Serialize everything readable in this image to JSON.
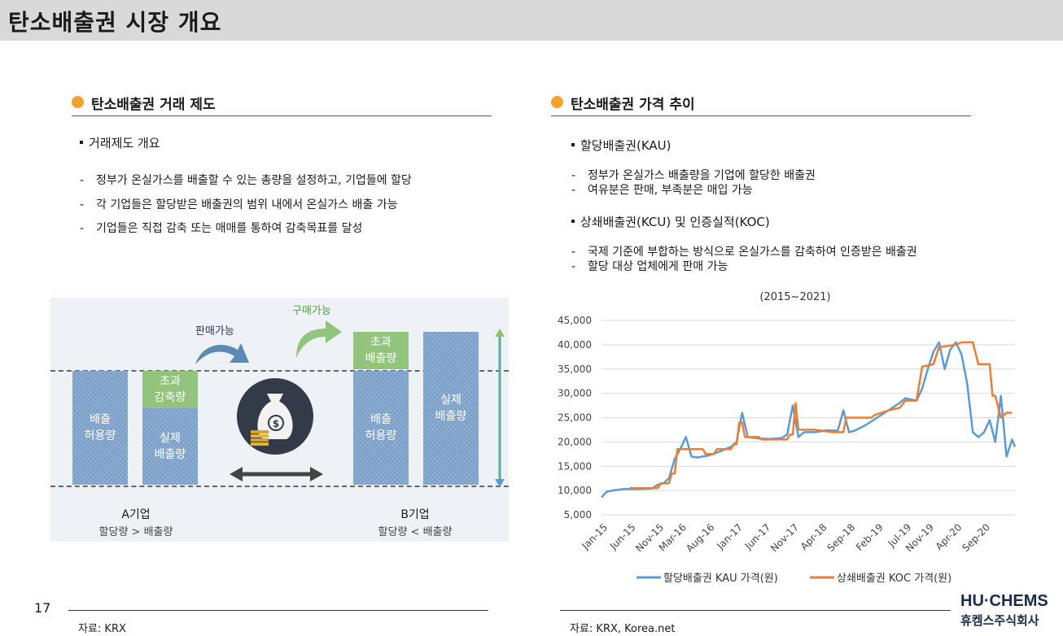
{
  "page": {
    "title": "탄소배출권 시장 개요",
    "page_number": "17",
    "logo_top": "HU·CHEMS",
    "logo_bottom": "휴켐스주식회사"
  },
  "left": {
    "heading": "탄소배출권 거래 제도",
    "bullet": "거래제도 개요",
    "dash_items": [
      "정부가 온실가스를 배출할 수 있는 총량을 설정하고, 기업들에 할당",
      "각 기업들은 할당받은 배출권의 범위 내에서 온실가스 배출 가능",
      "기업들은 직접 감축 또는 매매를 통하여 감축목표를 달성"
    ],
    "diagram": {
      "sell_label": "판매가능",
      "buy_label": "구매가능",
      "a_allow": "배출\n허용량",
      "a_excess": "초과\n감축량",
      "a_actual": "실제\n배출량",
      "b_excess": "초과\n배출량",
      "b_allow": "배출\n허용량",
      "b_actual": "실제\n배출량",
      "a_name": "A기업",
      "a_sub": "할당량 > 배출량",
      "b_name": "B기업",
      "b_sub": "할당량 < 배출량",
      "colors": {
        "bar": "#7ba0c8",
        "green": "#93c47d",
        "bg": "#eef1f5"
      }
    },
    "source": "자료: KRX"
  },
  "right": {
    "heading": "탄소배출권 가격 추이",
    "bullet1": "할당배출권(KAU)",
    "dash1": [
      "정부가 온실가스 배출량을 기업에 할당한 배출권",
      "여유분은 판매, 부족분은 매입 가능"
    ],
    "bullet2": "상쇄배출권(KCU) 및 인증실적(KOC)",
    "dash2": [
      "국제 기준에 부합하는 방식으로 온실가스를 감축하여 인증받은 배출권",
      "할당 대상 업체에게 판매 가능"
    ],
    "source": "자료: KRX, Korea.net"
  },
  "chart_data": {
    "type": "line",
    "title": "(2015~2021)",
    "ylim": [
      5000,
      45000
    ],
    "yticks": [
      "5,000",
      "10,000",
      "15,000",
      "20,000",
      "25,000",
      "30,000",
      "35,000",
      "40,000",
      "45,000"
    ],
    "xticks": [
      "Jan-15",
      "Jun-15",
      "Nov-15",
      "Mar-16",
      "Aug-16",
      "Jan-17",
      "Jun-17",
      "Nov-17",
      "Apr-18",
      "Sep-18",
      "Feb-19",
      "Jul-19",
      "Nov-19",
      "Apr-20",
      "Sep-20"
    ],
    "grid": true,
    "legend_position": "bottom",
    "series": [
      {
        "name": "할당배출권 KAU 가격(원)",
        "color": "#5b9bd5",
        "points": [
          [
            "2015-01",
            8600
          ],
          [
            "2015-02",
            9800
          ],
          [
            "2015-03",
            10000
          ],
          [
            "2015-05",
            10300
          ],
          [
            "2015-08",
            10300
          ],
          [
            "2015-10",
            10400
          ],
          [
            "2015-11",
            11200
          ],
          [
            "2015-12",
            11500
          ],
          [
            "2016-01",
            12500
          ],
          [
            "2016-02",
            16500
          ],
          [
            "2016-03",
            18500
          ],
          [
            "2016-04",
            21000
          ],
          [
            "2016-05",
            17000
          ],
          [
            "2016-06",
            16800
          ],
          [
            "2016-08",
            17200
          ],
          [
            "2016-10",
            18000
          ],
          [
            "2016-12",
            19000
          ],
          [
            "2017-01",
            20000
          ],
          [
            "2017-02",
            26000
          ],
          [
            "2017-03",
            21000
          ],
          [
            "2017-05",
            20700
          ],
          [
            "2017-07",
            20600
          ],
          [
            "2017-09",
            20800
          ],
          [
            "2017-10",
            21500
          ],
          [
            "2017-11",
            27500
          ],
          [
            "2017-12",
            21000
          ],
          [
            "2018-01",
            22000
          ],
          [
            "2018-03",
            22000
          ],
          [
            "2018-05",
            22400
          ],
          [
            "2018-07",
            22300
          ],
          [
            "2018-08",
            26500
          ],
          [
            "2018-09",
            22000
          ],
          [
            "2018-10",
            22300
          ],
          [
            "2018-12",
            23500
          ],
          [
            "2019-02",
            25000
          ],
          [
            "2019-04",
            26500
          ],
          [
            "2019-06",
            28000
          ],
          [
            "2019-07",
            29000
          ],
          [
            "2019-09",
            28500
          ],
          [
            "2019-10",
            31000
          ],
          [
            "2019-11",
            35000
          ],
          [
            "2019-12",
            38500
          ],
          [
            "2020-01",
            40500
          ],
          [
            "2020-02",
            35000
          ],
          [
            "2020-03",
            39000
          ],
          [
            "2020-04",
            40500
          ],
          [
            "2020-05",
            38000
          ],
          [
            "2020-06",
            32000
          ],
          [
            "2020-07",
            22000
          ],
          [
            "2020-08",
            21000
          ],
          [
            "2020-09",
            22000
          ],
          [
            "2020-10",
            24500
          ],
          [
            "2020-11",
            20000
          ],
          [
            "2020-12",
            29500
          ],
          [
            "2021-01",
            17000
          ],
          [
            "2021-02",
            20500
          ],
          [
            "2021-02",
            19000
          ]
        ]
      },
      {
        "name": "상쇄배출권 KOC 가격(원)",
        "color": "#ed7d31",
        "points": [
          [
            "2015-06",
            10500
          ],
          [
            "2015-11",
            10500
          ],
          [
            "2015-11",
            11500
          ],
          [
            "2016-01",
            11500
          ],
          [
            "2016-01",
            13500
          ],
          [
            "2016-02",
            13500
          ],
          [
            "2016-02",
            18500
          ],
          [
            "2016-07",
            18500
          ],
          [
            "2016-07",
            17500
          ],
          [
            "2016-09",
            17500
          ],
          [
            "2016-09",
            18500
          ],
          [
            "2016-12",
            18500
          ],
          [
            "2016-12",
            19500
          ],
          [
            "2017-01",
            19500
          ],
          [
            "2017-01",
            24000
          ],
          [
            "2017-02",
            24000
          ],
          [
            "2017-02",
            21000
          ],
          [
            "2017-05",
            21000
          ],
          [
            "2017-05",
            20500
          ],
          [
            "2017-10",
            20500
          ],
          [
            "2017-10",
            21500
          ],
          [
            "2017-11",
            21500
          ],
          [
            "2017-11",
            28000
          ],
          [
            "2017-12",
            22500
          ],
          [
            "2018-03",
            22500
          ],
          [
            "2018-06",
            22000
          ],
          [
            "2018-08",
            22000
          ],
          [
            "2018-08",
            25000
          ],
          [
            "2019-01",
            25000
          ],
          [
            "2019-01",
            25500
          ],
          [
            "2019-04",
            26500
          ],
          [
            "2019-06",
            27000
          ],
          [
            "2019-07",
            28500
          ],
          [
            "2019-09",
            28500
          ],
          [
            "2019-10",
            35500
          ],
          [
            "2019-12",
            36000
          ],
          [
            "2020-01",
            39500
          ],
          [
            "2020-04",
            40000
          ],
          [
            "2020-05",
            40500
          ],
          [
            "2020-07",
            40500
          ],
          [
            "2020-08",
            36000
          ],
          [
            "2020-10",
            36000
          ],
          [
            "2020-10",
            29500
          ],
          [
            "2020-11",
            29500
          ],
          [
            "2020-12",
            25000
          ],
          [
            "2021-01",
            26000
          ],
          [
            "2021-02",
            26000
          ]
        ]
      }
    ]
  }
}
